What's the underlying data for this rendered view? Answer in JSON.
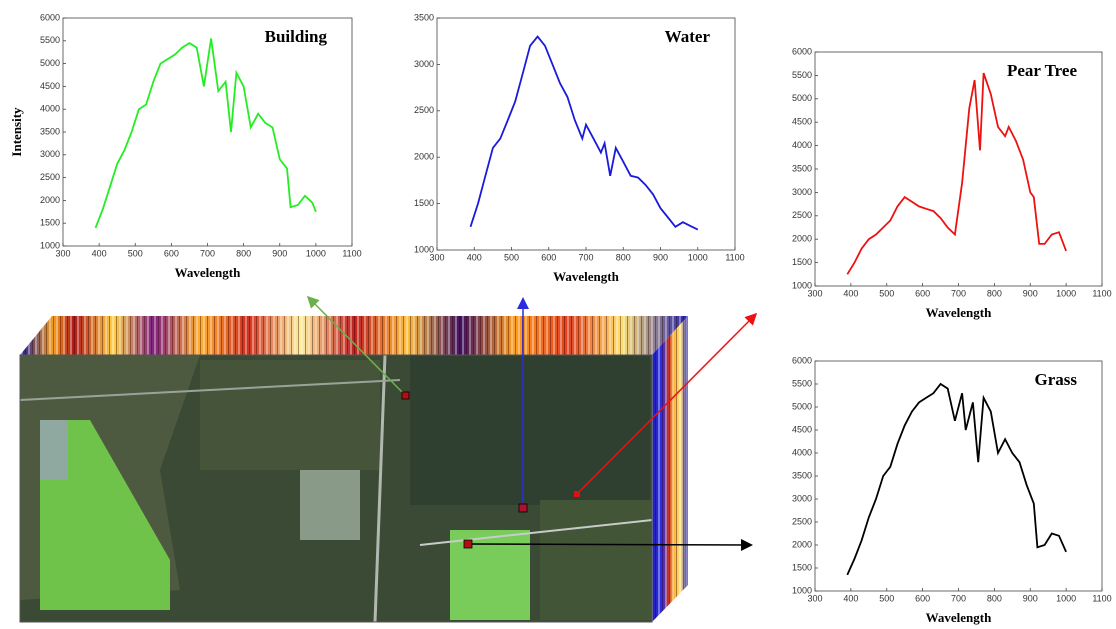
{
  "chart_data": [
    {
      "type": "line",
      "title": "Building",
      "x_label": "Wavelength",
      "y_label": "Intensity",
      "color": "#22ee22",
      "x": [
        390,
        410,
        430,
        450,
        470,
        490,
        510,
        530,
        550,
        570,
        590,
        610,
        630,
        650,
        670,
        690,
        710,
        730,
        750,
        765,
        780,
        800,
        820,
        840,
        860,
        880,
        900,
        920,
        930,
        950,
        970,
        990,
        1000
      ],
      "values": [
        1400,
        1800,
        2300,
        2800,
        3100,
        3500,
        4000,
        4100,
        4600,
        5000,
        5100,
        5200,
        5350,
        5450,
        5350,
        4500,
        5550,
        4400,
        4600,
        3500,
        4800,
        4500,
        3600,
        3900,
        3700,
        3600,
        2900,
        2700,
        1850,
        1900,
        2100,
        1950,
        1750
      ],
      "xlim": [
        300,
        1100
      ],
      "xticks": [
        300,
        400,
        500,
        600,
        700,
        800,
        900,
        1000,
        1100
      ],
      "ylim": [
        1000,
        6000
      ],
      "yticks": [
        1000,
        1500,
        2000,
        2500,
        3000,
        3500,
        4000,
        4500,
        5000,
        5500,
        6000
      ]
    },
    {
      "type": "line",
      "title": "Water",
      "x_label": "Wavelength",
      "color": "#1a1adc",
      "x": [
        390,
        410,
        430,
        450,
        470,
        490,
        510,
        530,
        550,
        570,
        590,
        610,
        630,
        650,
        670,
        690,
        700,
        720,
        740,
        750,
        765,
        780,
        800,
        820,
        840,
        860,
        880,
        900,
        920,
        940,
        960,
        980,
        1000
      ],
      "values": [
        1250,
        1500,
        1800,
        2100,
        2200,
        2400,
        2600,
        2900,
        3200,
        3300,
        3200,
        3000,
        2800,
        2650,
        2400,
        2200,
        2350,
        2200,
        2050,
        2150,
        1800,
        2100,
        1950,
        1800,
        1780,
        1700,
        1600,
        1450,
        1350,
        1250,
        1300,
        1260,
        1220
      ],
      "xlim": [
        300,
        1100
      ],
      "xticks": [
        300,
        400,
        500,
        600,
        700,
        800,
        900,
        1000,
        1100
      ],
      "ylim": [
        1000,
        3500
      ],
      "yticks": [
        1000,
        1500,
        2000,
        2500,
        3000,
        3500
      ]
    },
    {
      "type": "line",
      "title": "Pear Tree",
      "x_label": "Wavelength",
      "color": "#ee1111",
      "x": [
        390,
        410,
        430,
        450,
        470,
        490,
        510,
        530,
        550,
        570,
        590,
        610,
        630,
        650,
        670,
        690,
        710,
        730,
        745,
        760,
        770,
        790,
        810,
        830,
        840,
        860,
        880,
        900,
        910,
        925,
        940,
        960,
        980,
        1000
      ],
      "values": [
        1250,
        1500,
        1800,
        2000,
        2100,
        2250,
        2400,
        2700,
        2900,
        2800,
        2700,
        2650,
        2600,
        2450,
        2250,
        2100,
        3200,
        4800,
        5400,
        3900,
        5550,
        5100,
        4400,
        4200,
        4400,
        4100,
        3700,
        3000,
        2900,
        1900,
        1900,
        2100,
        2150,
        1750
      ],
      "xlim": [
        300,
        1100
      ],
      "xticks": [
        300,
        400,
        500,
        600,
        700,
        800,
        900,
        1000,
        1100
      ],
      "ylim": [
        1000,
        6000
      ],
      "yticks": [
        1000,
        1500,
        2000,
        2500,
        3000,
        3500,
        4000,
        4500,
        5000,
        5500,
        6000
      ]
    },
    {
      "type": "line",
      "title": "Grass",
      "x_label": "Wavelength",
      "color": "#000000",
      "x": [
        390,
        410,
        430,
        450,
        470,
        490,
        510,
        530,
        550,
        570,
        590,
        610,
        630,
        650,
        670,
        690,
        710,
        720,
        740,
        755,
        770,
        790,
        810,
        830,
        850,
        870,
        890,
        910,
        920,
        940,
        960,
        980,
        1000
      ],
      "values": [
        1350,
        1700,
        2100,
        2600,
        3000,
        3500,
        3700,
        4200,
        4600,
        4900,
        5100,
        5200,
        5300,
        5500,
        5400,
        4700,
        5300,
        4500,
        5100,
        3800,
        5200,
        4900,
        4000,
        4300,
        4000,
        3800,
        3300,
        2900,
        1950,
        2000,
        2250,
        2200,
        1850
      ],
      "xlim": [
        300,
        1100
      ],
      "xticks": [
        300,
        400,
        500,
        600,
        700,
        800,
        900,
        1000,
        1100
      ],
      "ylim": [
        1000,
        6000
      ],
      "yticks": [
        1000,
        1500,
        2000,
        2500,
        3000,
        3500,
        4000,
        4500,
        5000,
        5500,
        6000
      ]
    }
  ]
}
